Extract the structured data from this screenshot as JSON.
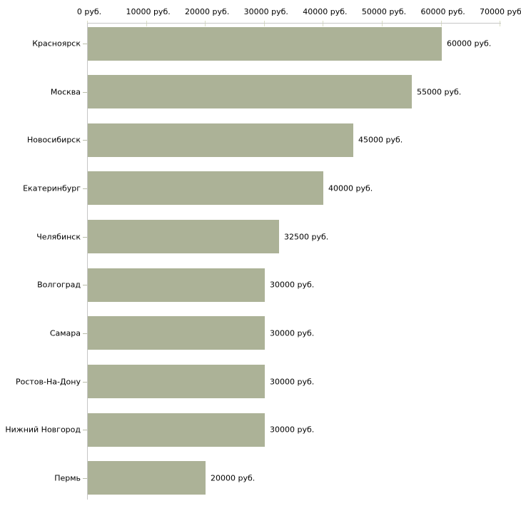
{
  "chart_data": {
    "type": "bar",
    "orientation": "horizontal",
    "title": "",
    "xlabel": "",
    "ylabel": "",
    "unit": "руб.",
    "categories": [
      "Красноярск",
      "Москва",
      "Новосибирск",
      "Екатеринбург",
      "Челябинск",
      "Волгоград",
      "Самара",
      "Ростов-На-Дону",
      "Нижний Новгород",
      "Пермь"
    ],
    "values": [
      60000,
      55000,
      45000,
      40000,
      32500,
      30000,
      30000,
      30000,
      30000,
      20000
    ],
    "value_labels": [
      "60000 руб.",
      "55000 руб.",
      "45000 руб.",
      "40000 руб.",
      "32500 руб.",
      "30000 руб.",
      "30000 руб.",
      "30000 руб.",
      "30000 руб.",
      "20000 руб."
    ],
    "x_ticks": [
      0,
      10000,
      20000,
      30000,
      40000,
      50000,
      60000,
      70000
    ],
    "x_tick_labels": [
      "0 руб.",
      "10000 руб.",
      "20000 руб.",
      "30000 руб.",
      "40000 руб.",
      "50000 руб.",
      "60000 руб.",
      "70000 руб."
    ],
    "xlim": [
      0,
      70000
    ],
    "grid": false,
    "legend_position": "none",
    "colors": {
      "bar": "#acb297",
      "axis_line": "#c6c6c6",
      "x_tick": "#d9ddc3",
      "y_tick": "#b9bdaa",
      "text": "#000000",
      "background": "#ffffff"
    }
  }
}
